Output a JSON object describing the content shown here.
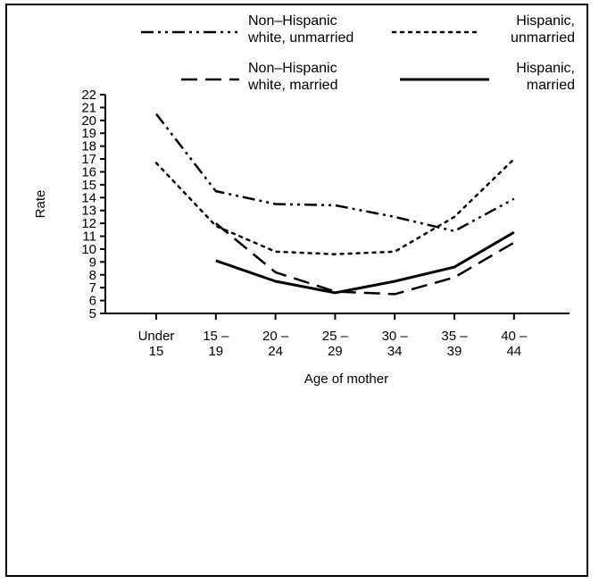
{
  "chart_data": {
    "type": "line",
    "title": "",
    "xlabel": "Age of mother",
    "ylabel": "Rate",
    "ylim": [
      5,
      22
    ],
    "yticks": [
      5,
      6,
      7,
      8,
      9,
      10,
      11,
      12,
      13,
      14,
      15,
      16,
      17,
      18,
      19,
      20,
      21,
      22
    ],
    "categories": [
      [
        "Under",
        "15"
      ],
      [
        "15 –",
        "19"
      ],
      [
        "20 –",
        "24"
      ],
      [
        "25 –",
        "29"
      ],
      [
        "30 –",
        "34"
      ],
      [
        "35 –",
        "39"
      ],
      [
        "40 –",
        "44"
      ]
    ],
    "series": [
      {
        "name": [
          "Non–Hispanic",
          "white, unmarried"
        ],
        "style": "dashdot",
        "color": "#000000",
        "values": [
          20.5,
          14.5,
          13.5,
          13.4,
          12.5,
          11.4,
          13.9
        ]
      },
      {
        "name": [
          "Hispanic,",
          "unmarried"
        ],
        "style": "dotted",
        "color": "#000000",
        "values": [
          16.7,
          11.8,
          9.8,
          9.6,
          9.8,
          12.5,
          17.0
        ]
      },
      {
        "name": [
          "Non–Hispanic",
          "white, married"
        ],
        "style": "dashed",
        "color": "#000000",
        "values": [
          null,
          12.0,
          8.2,
          6.7,
          6.5,
          7.8,
          10.5
        ]
      },
      {
        "name": [
          "Hispanic,",
          "married"
        ],
        "style": "solid",
        "color": "#000000",
        "values": [
          null,
          9.1,
          7.5,
          6.6,
          7.5,
          8.6,
          11.3
        ]
      }
    ],
    "grid": false,
    "legend_position": "top"
  }
}
